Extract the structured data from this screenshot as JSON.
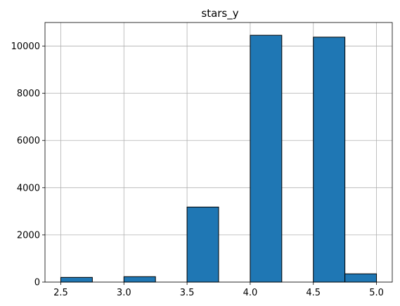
{
  "chart_data": {
    "type": "histogram",
    "title": "stars_y",
    "xlabel": "",
    "ylabel": "",
    "xlim": [
      2.375,
      5.125
    ],
    "ylim": [
      0,
      11000
    ],
    "grid": true,
    "bar_color": "#1f77b4",
    "edge_color": "#000000",
    "bins": [
      {
        "start": 2.5,
        "end": 2.75,
        "count": 200
      },
      {
        "start": 2.75,
        "end": 3.0,
        "count": 0
      },
      {
        "start": 3.0,
        "end": 3.25,
        "count": 230
      },
      {
        "start": 3.25,
        "end": 3.5,
        "count": 0
      },
      {
        "start": 3.5,
        "end": 3.75,
        "count": 3180
      },
      {
        "start": 3.75,
        "end": 4.0,
        "count": 0
      },
      {
        "start": 4.0,
        "end": 4.25,
        "count": 10460
      },
      {
        "start": 4.25,
        "end": 4.5,
        "count": 0
      },
      {
        "start": 4.5,
        "end": 4.75,
        "count": 10380
      },
      {
        "start": 4.75,
        "end": 5.0,
        "count": 350
      }
    ],
    "x_ticks": [
      "2.5",
      "3.0",
      "3.5",
      "4.0",
      "4.5",
      "5.0"
    ],
    "y_ticks": [
      "0",
      "2000",
      "4000",
      "6000",
      "8000",
      "10000"
    ]
  }
}
